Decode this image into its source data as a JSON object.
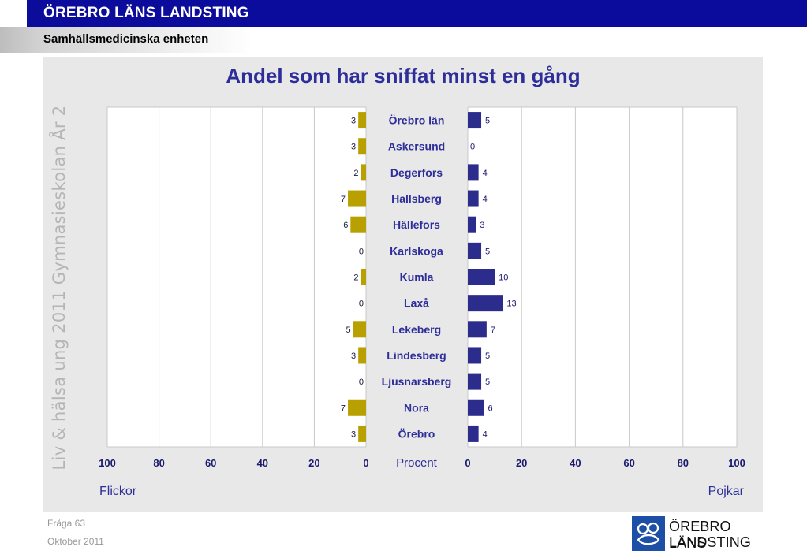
{
  "header": {
    "title": "ÖREBRO LÄNS LANDSTING",
    "subtitle": "Samhällsmedicinska enheten"
  },
  "side_text": "Liv & hälsa ung 2011 Gymnasieskolan År 2",
  "footer": {
    "question": "Fråga 63",
    "date": "Oktober 2011"
  },
  "logo": {
    "line1": "ÖREBRO LÄNS",
    "line2": "LANDSTING"
  },
  "colors": {
    "girls": "#b8a000",
    "boys": "#2c2c8c",
    "header_bg": "#0b0b9c",
    "title": "#2e2e9a"
  },
  "chart_data": {
    "type": "bar",
    "title": "Andel som har sniffat minst en gång",
    "xlabel": "Procent",
    "left_label": "Flickor",
    "right_label": "Pojkar",
    "xlim": [
      0,
      100
    ],
    "ticks": [
      "0",
      "20",
      "40",
      "60",
      "80",
      "100"
    ],
    "categories": [
      "Örebro län",
      "Askersund",
      "Degerfors",
      "Hallsberg",
      "Hällefors",
      "Karlskoga",
      "Kumla",
      "Laxå",
      "Lekeberg",
      "Lindesberg",
      "Ljusnarsberg",
      "Nora",
      "Örebro"
    ],
    "series": [
      {
        "name": "Flickor",
        "side": "left",
        "values": [
          3,
          3,
          2,
          7,
          6,
          0,
          2,
          0,
          5,
          3,
          0,
          7,
          3
        ]
      },
      {
        "name": "Pojkar",
        "side": "right",
        "values": [
          5,
          0,
          4,
          4,
          3,
          5,
          10,
          13,
          7,
          5,
          5,
          6,
          4
        ]
      }
    ],
    "grid": true
  }
}
